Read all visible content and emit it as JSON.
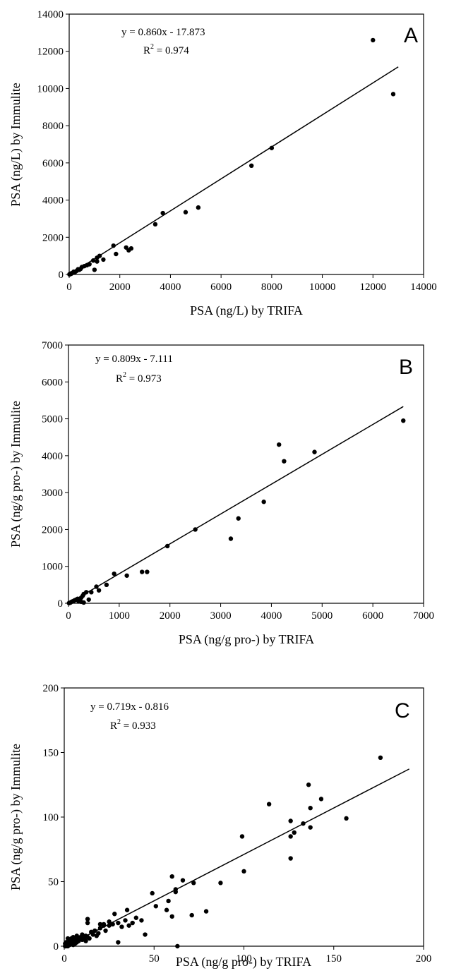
{
  "chart_data": [
    {
      "type": "scatter",
      "panel": "A",
      "xlabel": "PSA (ng/L) by TRIFA",
      "ylabel": "PSA (ng/L) by Immulite",
      "xlim": [
        0,
        14000
      ],
      "ylim": [
        0,
        14000
      ],
      "xticks": [
        "0",
        "2000",
        "4000",
        "6000",
        "8000",
        "10000",
        "12000",
        "14000"
      ],
      "yticks": [
        "0",
        "2000",
        "4000",
        "6000",
        "8000",
        "10000",
        "12000",
        "14000"
      ],
      "equation": "y = 0.860x - 17.873",
      "r2_label": "R",
      "r2_sup": "2",
      "r2_value": " = 0.974",
      "trendline": {
        "slope": 0.86,
        "intercept": -17.873,
        "x_range": [
          0,
          13000
        ]
      },
      "points": [
        [
          12000,
          12600
        ],
        [
          12800,
          9700
        ],
        [
          8000,
          6800
        ],
        [
          7200,
          5850
        ],
        [
          5100,
          3600
        ],
        [
          4600,
          3350
        ],
        [
          3700,
          3300
        ],
        [
          3400,
          2700
        ],
        [
          2450,
          1400
        ],
        [
          2250,
          1450
        ],
        [
          1750,
          1550
        ],
        [
          1850,
          1100
        ],
        [
          2350,
          1300
        ],
        [
          1100,
          900
        ],
        [
          1200,
          1000
        ],
        [
          1350,
          800
        ],
        [
          1100,
          700
        ],
        [
          950,
          750
        ],
        [
          1000,
          250
        ],
        [
          800,
          550
        ],
        [
          600,
          450
        ],
        [
          500,
          400
        ],
        [
          450,
          300
        ],
        [
          400,
          250
        ],
        [
          300,
          200
        ],
        [
          250,
          150
        ],
        [
          200,
          120
        ],
        [
          150,
          100
        ],
        [
          100,
          60
        ],
        [
          80,
          40
        ],
        [
          50,
          30
        ],
        [
          30,
          10
        ],
        [
          20,
          20
        ],
        [
          10,
          5
        ],
        [
          120,
          80
        ],
        [
          60,
          50
        ],
        [
          350,
          280
        ],
        [
          180,
          150
        ],
        [
          700,
          500
        ]
      ],
      "grid": false
    },
    {
      "type": "scatter",
      "panel": "B",
      "xlabel": "PSA (ng/g pro-) by TRIFA",
      "ylabel": "PSA (ng/g pro-) by Immulite",
      "xlim": [
        0,
        7000
      ],
      "ylim": [
        0,
        7000
      ],
      "xticks": [
        "0",
        "1000",
        "2000",
        "3000",
        "4000",
        "5000",
        "6000",
        "7000"
      ],
      "yticks": [
        "0",
        "1000",
        "2000",
        "3000",
        "4000",
        "5000",
        "6000",
        "7000"
      ],
      "equation": "y = 0.809x - 7.111",
      "r2_label": "R",
      "r2_sup": "2",
      "r2_value": " = 0.973",
      "trendline": {
        "slope": 0.809,
        "intercept": -7.111,
        "x_range": [
          0,
          6600
        ]
      },
      "points": [
        [
          6600,
          4950
        ],
        [
          4850,
          4100
        ],
        [
          4150,
          4300
        ],
        [
          4250,
          3850
        ],
        [
          3850,
          2750
        ],
        [
          3350,
          2300
        ],
        [
          3200,
          1750
        ],
        [
          2500,
          2000
        ],
        [
          1950,
          1550
        ],
        [
          1550,
          850
        ],
        [
          1450,
          850
        ],
        [
          1150,
          750
        ],
        [
          900,
          800
        ],
        [
          750,
          500
        ],
        [
          600,
          350
        ],
        [
          550,
          450
        ],
        [
          450,
          300
        ],
        [
          400,
          100
        ],
        [
          350,
          300
        ],
        [
          300,
          250
        ],
        [
          280,
          200
        ],
        [
          250,
          150
        ],
        [
          220,
          80
        ],
        [
          200,
          50
        ],
        [
          180,
          120
        ],
        [
          150,
          100
        ],
        [
          120,
          80
        ],
        [
          100,
          60
        ],
        [
          80,
          50
        ],
        [
          60,
          40
        ],
        [
          40,
          20
        ],
        [
          20,
          10
        ],
        [
          10,
          5
        ],
        [
          300,
          20
        ],
        [
          250,
          40
        ]
      ],
      "grid": false
    },
    {
      "type": "scatter",
      "panel": "C",
      "xlabel": "PSA (ng/g pro-) by TRIFA",
      "ylabel": "PSA (ng/g pro-) by Immulite",
      "xlim": [
        0,
        200
      ],
      "ylim": [
        0,
        200
      ],
      "xticks": [
        "0",
        "50",
        "100",
        "150",
        "200"
      ],
      "yticks": [
        "0",
        "50",
        "100",
        "150",
        "200"
      ],
      "equation": "y = 0.719x - 0.816",
      "r2_label": "R",
      "r2_sup": "2",
      "r2_value": " = 0.933",
      "trendline": {
        "slope": 0.719,
        "intercept": -0.816,
        "x_range": [
          0,
          192
        ]
      },
      "points": [
        [
          176,
          146
        ],
        [
          157,
          99
        ],
        [
          143,
          114
        ],
        [
          136,
          125
        ],
        [
          137,
          107
        ],
        [
          137,
          92
        ],
        [
          133,
          95
        ],
        [
          128,
          88
        ],
        [
          126,
          97
        ],
        [
          126,
          85
        ],
        [
          126,
          68
        ],
        [
          114,
          110
        ],
        [
          99,
          85
        ],
        [
          100,
          58
        ],
        [
          87,
          49
        ],
        [
          79,
          27
        ],
        [
          72,
          49
        ],
        [
          71,
          24
        ],
        [
          66,
          51
        ],
        [
          62,
          42
        ],
        [
          62,
          44
        ],
        [
          60,
          54
        ],
        [
          60,
          23
        ],
        [
          58,
          35
        ],
        [
          57,
          28
        ],
        [
          51,
          31
        ],
        [
          49,
          41
        ],
        [
          45,
          9
        ],
        [
          43,
          20
        ],
        [
          40,
          22
        ],
        [
          38,
          18
        ],
        [
          36,
          16
        ],
        [
          35,
          28
        ],
        [
          34,
          20
        ],
        [
          32,
          15
        ],
        [
          30,
          3
        ],
        [
          30,
          18
        ],
        [
          28,
          25
        ],
        [
          27,
          17
        ],
        [
          25,
          16
        ],
        [
          23,
          12
        ],
        [
          22,
          17
        ],
        [
          20,
          14
        ],
        [
          19,
          10
        ],
        [
          18,
          8
        ],
        [
          17,
          12
        ],
        [
          16,
          9
        ],
        [
          15,
          11
        ],
        [
          14,
          6
        ],
        [
          13,
          7
        ],
        [
          13,
          18
        ],
        [
          13,
          21
        ],
        [
          12,
          8
        ],
        [
          12,
          4
        ],
        [
          11,
          6
        ],
        [
          10,
          5
        ],
        [
          10,
          9
        ],
        [
          9,
          7
        ],
        [
          8,
          4
        ],
        [
          8,
          6
        ],
        [
          7,
          3
        ],
        [
          7,
          8
        ],
        [
          6,
          2
        ],
        [
          6,
          5
        ],
        [
          5,
          1
        ],
        [
          5,
          4
        ],
        [
          5,
          7
        ],
        [
          4,
          2
        ],
        [
          4,
          6
        ],
        [
          3,
          1
        ],
        [
          3,
          3
        ],
        [
          3,
          5
        ],
        [
          2,
          0
        ],
        [
          2,
          2
        ],
        [
          2,
          6
        ],
        [
          1,
          0
        ],
        [
          1,
          1
        ],
        [
          1,
          3
        ],
        [
          0.5,
          0
        ],
        [
          0.5,
          2
        ],
        [
          20,
          17
        ],
        [
          22,
          16
        ],
        [
          25,
          19
        ],
        [
          63,
          0
        ]
      ],
      "grid": false
    }
  ]
}
